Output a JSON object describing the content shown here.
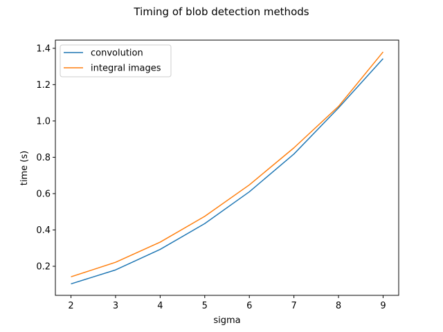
{
  "chart_data": {
    "type": "line",
    "title": "Timing of blob detection methods",
    "xlabel": "sigma",
    "ylabel": "time (s)",
    "x": [
      2,
      3,
      4,
      5,
      6,
      7,
      8,
      9
    ],
    "xlim": [
      1.65,
      9.35
    ],
    "ylim": [
      0.04,
      1.445
    ],
    "xticks": [
      2,
      3,
      4,
      5,
      6,
      7,
      8,
      9
    ],
    "xtick_labels": [
      "2",
      "3",
      "4",
      "5",
      "6",
      "7",
      "8",
      "9"
    ],
    "yticks": [
      0.2,
      0.4,
      0.6,
      0.8,
      1.0,
      1.2,
      1.4
    ],
    "ytick_labels": [
      "0.2",
      "0.4",
      "0.6",
      "0.8",
      "1.0",
      "1.2",
      "1.4"
    ],
    "grid": false,
    "legend_position": "top-left",
    "series": [
      {
        "name": "convolution",
        "color": "#1f77b4",
        "values": [
          0.103,
          0.18,
          0.293,
          0.435,
          0.61,
          0.818,
          1.072,
          1.343
        ]
      },
      {
        "name": "integral images",
        "color": "#ff7f0e",
        "values": [
          0.142,
          0.222,
          0.333,
          0.475,
          0.648,
          0.852,
          1.08,
          1.38
        ]
      }
    ]
  }
}
